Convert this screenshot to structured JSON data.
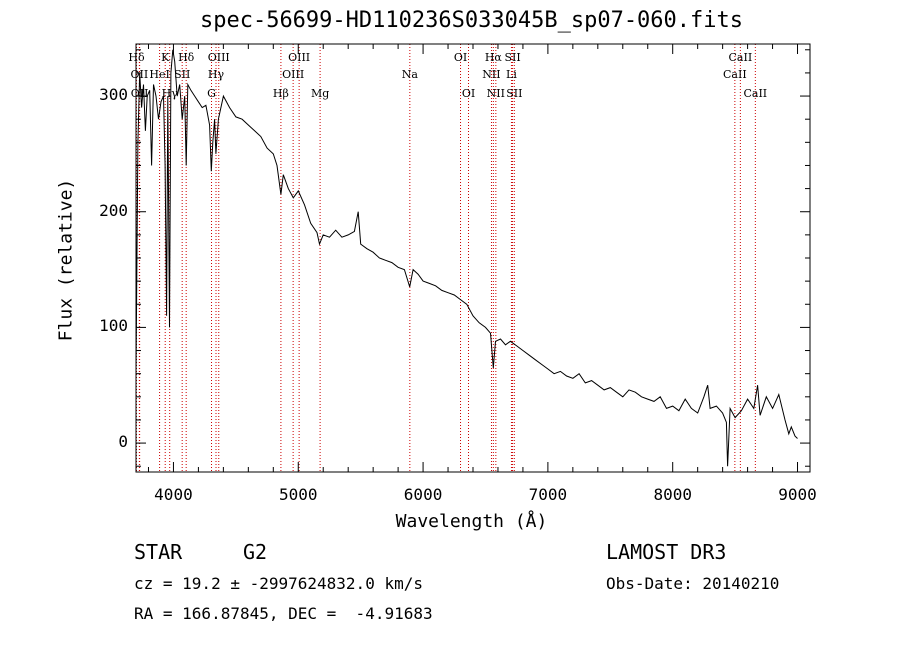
{
  "chart_data": {
    "type": "line",
    "title": "spec-56699-HD110236S033045B_sp07-060.fits",
    "xlabel": "Wavelength (Å)",
    "ylabel": "Flux (relative)",
    "xlim": [
      3700,
      9100
    ],
    "ylim": [
      -25,
      345
    ],
    "x_ticks": [
      4000,
      5000,
      6000,
      7000,
      8000,
      9000
    ],
    "y_ticks": [
      0,
      100,
      200,
      300
    ],
    "grid": false,
    "line_color": "#000000",
    "marker_color": "#cc0000",
    "series": [
      {
        "name": "flux",
        "points": [
          [
            3700,
            60
          ],
          [
            3715,
            260
          ],
          [
            3730,
            320
          ],
          [
            3745,
            290
          ],
          [
            3760,
            310
          ],
          [
            3775,
            270
          ],
          [
            3790,
            300
          ],
          [
            3810,
            305
          ],
          [
            3825,
            240
          ],
          [
            3840,
            310
          ],
          [
            3860,
            300
          ],
          [
            3880,
            280
          ],
          [
            3900,
            295
          ],
          [
            3920,
            300
          ],
          [
            3933,
            240
          ],
          [
            3945,
            110
          ],
          [
            3955,
            300
          ],
          [
            3968,
            100
          ],
          [
            3980,
            320
          ],
          [
            3995,
            340
          ],
          [
            4010,
            330
          ],
          [
            4030,
            300
          ],
          [
            4050,
            310
          ],
          [
            4070,
            280
          ],
          [
            4090,
            300
          ],
          [
            4102,
            240
          ],
          [
            4115,
            310
          ],
          [
            4140,
            305
          ],
          [
            4170,
            300
          ],
          [
            4200,
            295
          ],
          [
            4230,
            290
          ],
          [
            4260,
            292
          ],
          [
            4290,
            275
          ],
          [
            4303,
            235
          ],
          [
            4315,
            260
          ],
          [
            4330,
            280
          ],
          [
            4340,
            250
          ],
          [
            4360,
            280
          ],
          [
            4400,
            300
          ],
          [
            4450,
            290
          ],
          [
            4500,
            282
          ],
          [
            4550,
            280
          ],
          [
            4600,
            275
          ],
          [
            4650,
            270
          ],
          [
            4700,
            265
          ],
          [
            4750,
            255
          ],
          [
            4800,
            250
          ],
          [
            4830,
            240
          ],
          [
            4861,
            215
          ],
          [
            4880,
            232
          ],
          [
            4920,
            220
          ],
          [
            4960,
            212
          ],
          [
            5000,
            218
          ],
          [
            5050,
            206
          ],
          [
            5100,
            190
          ],
          [
            5150,
            182
          ],
          [
            5170,
            172
          ],
          [
            5200,
            180
          ],
          [
            5250,
            178
          ],
          [
            5300,
            184
          ],
          [
            5350,
            178
          ],
          [
            5400,
            180
          ],
          [
            5450,
            183
          ],
          [
            5480,
            200
          ],
          [
            5500,
            172
          ],
          [
            5550,
            168
          ],
          [
            5600,
            165
          ],
          [
            5650,
            160
          ],
          [
            5700,
            158
          ],
          [
            5750,
            156
          ],
          [
            5800,
            152
          ],
          [
            5850,
            150
          ],
          [
            5893,
            135
          ],
          [
            5920,
            150
          ],
          [
            5960,
            146
          ],
          [
            6000,
            140
          ],
          [
            6050,
            138
          ],
          [
            6100,
            136
          ],
          [
            6150,
            132
          ],
          [
            6200,
            130
          ],
          [
            6250,
            128
          ],
          [
            6300,
            124
          ],
          [
            6350,
            120
          ],
          [
            6400,
            110
          ],
          [
            6450,
            104
          ],
          [
            6500,
            100
          ],
          [
            6540,
            95
          ],
          [
            6563,
            65
          ],
          [
            6580,
            88
          ],
          [
            6620,
            90
          ],
          [
            6660,
            85
          ],
          [
            6700,
            88
          ],
          [
            6750,
            84
          ],
          [
            6800,
            80
          ],
          [
            6850,
            76
          ],
          [
            6900,
            72
          ],
          [
            6950,
            68
          ],
          [
            7000,
            64
          ],
          [
            7050,
            60
          ],
          [
            7100,
            62
          ],
          [
            7150,
            58
          ],
          [
            7200,
            56
          ],
          [
            7250,
            60
          ],
          [
            7300,
            52
          ],
          [
            7350,
            54
          ],
          [
            7400,
            50
          ],
          [
            7450,
            46
          ],
          [
            7500,
            48
          ],
          [
            7550,
            44
          ],
          [
            7600,
            40
          ],
          [
            7650,
            46
          ],
          [
            7700,
            44
          ],
          [
            7750,
            40
          ],
          [
            7800,
            38
          ],
          [
            7850,
            36
          ],
          [
            7900,
            40
          ],
          [
            7950,
            30
          ],
          [
            8000,
            32
          ],
          [
            8050,
            28
          ],
          [
            8100,
            38
          ],
          [
            8150,
            30
          ],
          [
            8200,
            26
          ],
          [
            8250,
            40
          ],
          [
            8280,
            50
          ],
          [
            8300,
            30
          ],
          [
            8350,
            32
          ],
          [
            8400,
            26
          ],
          [
            8430,
            18
          ],
          [
            8440,
            -20
          ],
          [
            8460,
            30
          ],
          [
            8500,
            22
          ],
          [
            8550,
            28
          ],
          [
            8600,
            38
          ],
          [
            8650,
            30
          ],
          [
            8680,
            50
          ],
          [
            8700,
            24
          ],
          [
            8750,
            40
          ],
          [
            8800,
            30
          ],
          [
            8850,
            42
          ],
          [
            8900,
            20
          ],
          [
            8930,
            8
          ],
          [
            8950,
            14
          ],
          [
            8980,
            6
          ],
          [
            9000,
            4
          ]
        ]
      }
    ],
    "line_markers": [
      {
        "label": "Hδ",
        "x": 3704,
        "row": 0
      },
      {
        "label": "OII",
        "x": 3727,
        "row": 1
      },
      {
        "label": "OII",
        "x": 3729,
        "row": 2
      },
      {
        "label": "K",
        "x": 3934,
        "row": 0
      },
      {
        "label": "HeI",
        "x": 3889,
        "row": 1
      },
      {
        "label": "Hγ",
        "x": 3970,
        "row": 2
      },
      {
        "label": "Hδ",
        "x": 4102,
        "row": 0
      },
      {
        "label": "SII",
        "x": 4070,
        "row": 1
      },
      {
        "label": "OIII",
        "x": 4363,
        "row": 0
      },
      {
        "label": "Hγ",
        "x": 4341,
        "row": 1
      },
      {
        "label": "G",
        "x": 4305,
        "row": 2
      },
      {
        "label": "Hβ",
        "x": 4861,
        "row": 2
      },
      {
        "label": "OIII",
        "x": 5007,
        "row": 0
      },
      {
        "label": "OIII",
        "x": 4959,
        "row": 1
      },
      {
        "label": "Mg",
        "x": 5175,
        "row": 2
      },
      {
        "label": "Na",
        "x": 5894,
        "row": 1
      },
      {
        "label": "OI",
        "x": 6300,
        "row": 0
      },
      {
        "label": "OI",
        "x": 6364,
        "row": 2
      },
      {
        "label": "Hα",
        "x": 6563,
        "row": 0
      },
      {
        "label": "NII",
        "x": 6548,
        "row": 1
      },
      {
        "label": "NII",
        "x": 6583,
        "row": 2
      },
      {
        "label": "SII",
        "x": 6717,
        "row": 0
      },
      {
        "label": "Li",
        "x": 6708,
        "row": 1
      },
      {
        "label": "SII",
        "x": 6731,
        "row": 2
      },
      {
        "label": "CaII",
        "x": 8542,
        "row": 0
      },
      {
        "label": "CaII",
        "x": 8498,
        "row": 1
      },
      {
        "label": "CaII",
        "x": 8662,
        "row": 2
      }
    ]
  },
  "info": {
    "object_class": "STAR",
    "subclass": "G2",
    "survey": "LAMOST DR3",
    "redshift": "cz = 19.2 ± -2997624832.0 km/s",
    "obs_date": "Obs-Date: 20140210",
    "coords": "RA = 166.87845, DEC =  -4.91683"
  }
}
